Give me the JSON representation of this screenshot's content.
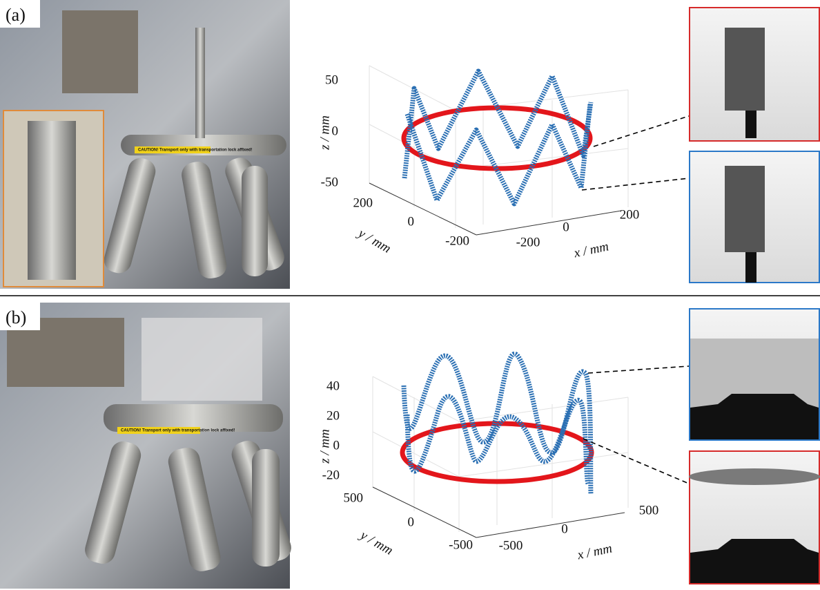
{
  "panels": [
    {
      "label": "(a)",
      "photo": {
        "sign": "CAUTION! Transport only with transportation lock affixed!"
      },
      "plot": {
        "z_ticks": [
          "50",
          "0",
          "-50"
        ],
        "y_ticks": [
          "200",
          "0",
          "-200"
        ],
        "x_ticks": [
          "-200",
          "0",
          "200"
        ],
        "z_label": "z / mm",
        "y_label": "y / mm",
        "x_label": "x / mm"
      }
    },
    {
      "label": "(b)",
      "photo": {
        "sign": "CAUTION! Transport only with transportation lock affixed!"
      },
      "plot": {
        "z_ticks": [
          "40",
          "20",
          "0",
          "-20"
        ],
        "y_ticks": [
          "500",
          "0",
          "-500"
        ],
        "x_ticks": [
          "-500",
          "0",
          "500"
        ],
        "z_label": "z / mm",
        "y_label": "y / mm",
        "x_label": "x / mm"
      }
    }
  ]
}
